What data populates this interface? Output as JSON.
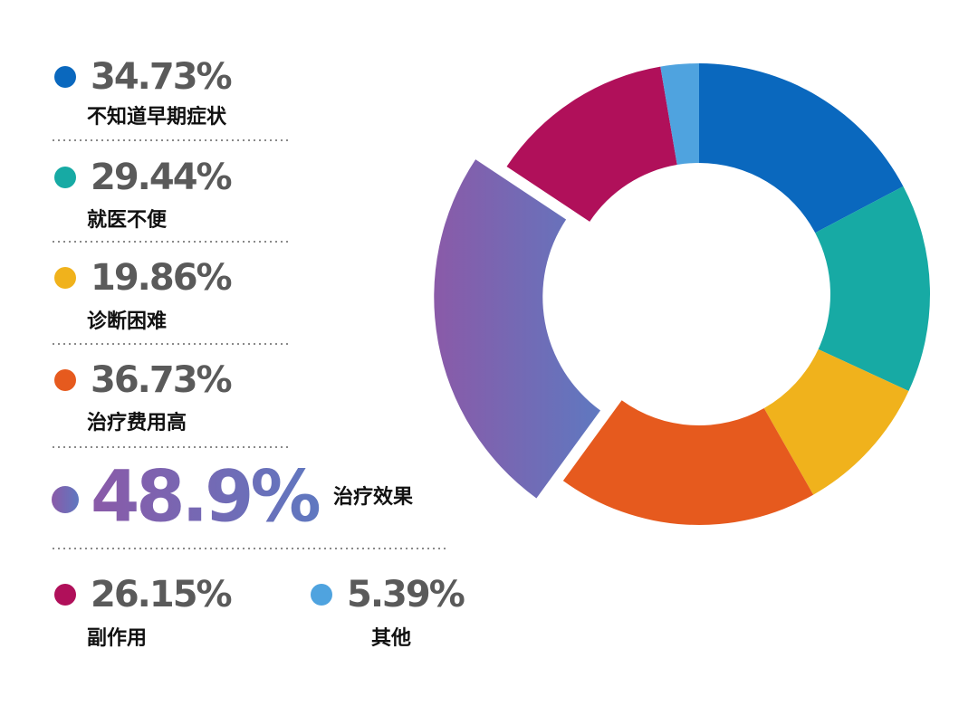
{
  "chart_data": {
    "type": "pie",
    "donut": true,
    "categories": [
      "不知道早期症状",
      "就医不便",
      "诊断困难",
      "治疗费用高",
      "治疗效果",
      "副作用",
      "其他"
    ],
    "values": [
      34.73,
      29.44,
      19.86,
      36.73,
      48.9,
      26.15,
      5.39
    ],
    "value_labels": [
      "34.73%",
      "29.44%",
      "19.86%",
      "36.73%",
      "48.9%",
      "26.15%",
      "5.39%"
    ],
    "colors": [
      "#0a68be",
      "#17aaa4",
      "#f0b21c",
      "#e65a1e",
      "#7c66b0",
      "#b0105a",
      "#4fa3df"
    ],
    "explode": [
      false,
      false,
      false,
      false,
      true,
      false,
      false
    ]
  }
}
